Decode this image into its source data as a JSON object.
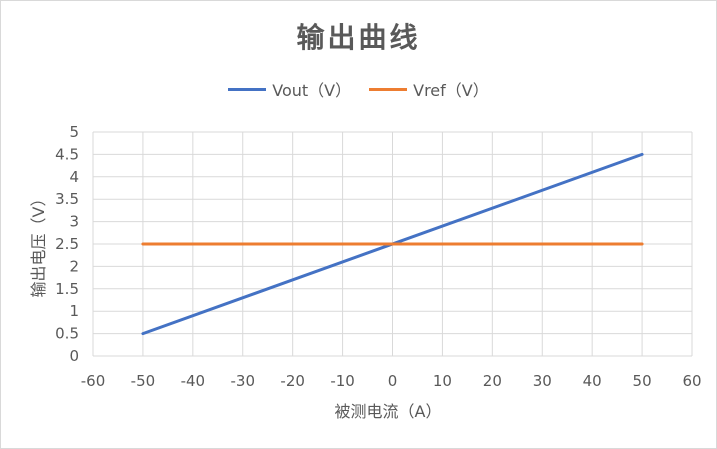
{
  "chart_data": {
    "type": "line",
    "title": "输出曲线",
    "xlabel": "被测电流（A）",
    "ylabel": "输出电压（V）",
    "xlim": [
      -60,
      60
    ],
    "ylim": [
      0,
      5
    ],
    "xticks": [
      -60,
      -50,
      -40,
      -30,
      -20,
      -10,
      0,
      10,
      20,
      30,
      40,
      50,
      60
    ],
    "yticks": [
      0,
      0.5,
      1,
      1.5,
      2,
      2.5,
      3,
      3.5,
      4,
      4.5,
      5
    ],
    "grid": true,
    "legend_position": "top",
    "series": [
      {
        "name": "Vout（V）",
        "color": "#4472c4",
        "x": [
          -50,
          50
        ],
        "y": [
          0.5,
          4.5
        ]
      },
      {
        "name": "Vref（V）",
        "color": "#ed7d31",
        "x": [
          -50,
          50
        ],
        "y": [
          2.5,
          2.5
        ]
      }
    ]
  }
}
